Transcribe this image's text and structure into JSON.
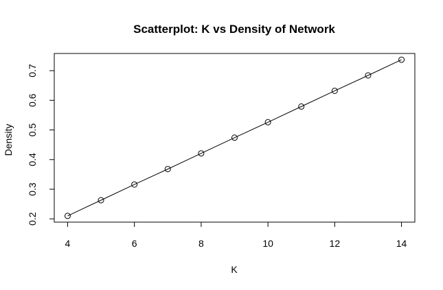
{
  "chart_data": {
    "type": "line",
    "title": "Scatterplot: K vs Density of Network",
    "xlabel": "K",
    "ylabel": "Density",
    "x": [
      4,
      5,
      6,
      7,
      8,
      9,
      10,
      11,
      12,
      13,
      14
    ],
    "y": [
      0.21,
      0.263,
      0.316,
      0.368,
      0.421,
      0.474,
      0.526,
      0.579,
      0.632,
      0.684,
      0.737
    ],
    "xlim": [
      3.6,
      14.4
    ],
    "ylim": [
      0.189,
      0.758
    ],
    "xticks": [
      4,
      6,
      8,
      10,
      12,
      14
    ],
    "yticks": [
      0.2,
      0.3,
      0.4,
      0.5,
      0.6,
      0.7
    ],
    "xtick_labels": [
      "4",
      "6",
      "8",
      "10",
      "12",
      "14"
    ],
    "ytick_labels": [
      "0.2",
      "0.3",
      "0.4",
      "0.5",
      "0.6",
      "0.7"
    ],
    "markers": "open-circle",
    "grid": false,
    "legend": false
  }
}
